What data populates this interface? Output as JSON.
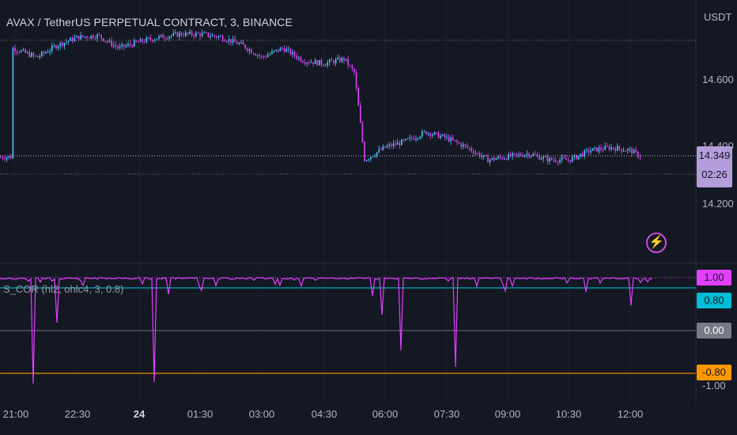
{
  "header": {
    "symbol_title": "AVAX / TetherUS PERPETUAL CONTRACT, 3, BINANCE"
  },
  "price_axis": {
    "currency": "USDT",
    "tick_labels": [
      "14.600",
      "14.400",
      "14.200"
    ],
    "last_price": "14.349",
    "countdown": "02:26"
  },
  "indicator": {
    "label": "S_COR (hl2, ohlc4, 3, 0.8)",
    "levels": [
      {
        "label": "1.00",
        "color": "#e040fb"
      },
      {
        "label": "0.80",
        "color": "#00bcd4"
      },
      {
        "label": "0.00",
        "color": "#787b86"
      },
      {
        "label": "-0.80",
        "color": "#ff9800"
      }
    ],
    "cropped_label": "-1.00",
    "line_color": "#e040fb"
  },
  "time_axis": {
    "labels": [
      "21:00",
      "22:30",
      "24",
      "01:30",
      "03:00",
      "04:30",
      "06:00",
      "07:30",
      "09:00",
      "10:30",
      "12:00"
    ]
  },
  "colors": {
    "background": "#141823",
    "candle_up": "#4fc3f7",
    "candle_down": "#e040fb",
    "last_price": "#b39ddb"
  },
  "icons": {
    "lightning": "lightning-icon"
  },
  "chart_data": {
    "type": "candlestick",
    "ylabel": "USDT",
    "ylim": [
      14.15,
      14.78
    ],
    "y_ticks": [
      14.6,
      14.4,
      14.2
    ],
    "close_points": [
      [
        "20:54",
        14.7
      ],
      [
        "21:30",
        14.67
      ],
      [
        "22:00",
        14.71
      ],
      [
        "22:30",
        14.735
      ],
      [
        "23:00",
        14.74
      ],
      [
        "23:30",
        14.7
      ],
      [
        "24:00",
        14.72
      ],
      [
        "00:30",
        14.735
      ],
      [
        "01:00",
        14.745
      ],
      [
        "01:30",
        14.745
      ],
      [
        "02:00",
        14.735
      ],
      [
        "02:30",
        14.71
      ],
      [
        "03:00",
        14.67
      ],
      [
        "03:30",
        14.7
      ],
      [
        "04:00",
        14.66
      ],
      [
        "04:30",
        14.65
      ],
      [
        "05:00",
        14.665
      ],
      [
        "05:15",
        14.62
      ],
      [
        "05:30",
        14.34
      ],
      [
        "06:00",
        14.38
      ],
      [
        "06:30",
        14.4
      ],
      [
        "07:00",
        14.43
      ],
      [
        "07:30",
        14.41
      ],
      [
        "08:00",
        14.38
      ],
      [
        "08:30",
        14.34
      ],
      [
        "09:00",
        14.35
      ],
      [
        "09:30",
        14.36
      ],
      [
        "10:00",
        14.34
      ],
      [
        "10:30",
        14.34
      ],
      [
        "11:00",
        14.37
      ],
      [
        "11:30",
        14.38
      ],
      [
        "12:00",
        14.37
      ],
      [
        "12:15",
        14.349
      ]
    ],
    "last_price": 14.349
  }
}
